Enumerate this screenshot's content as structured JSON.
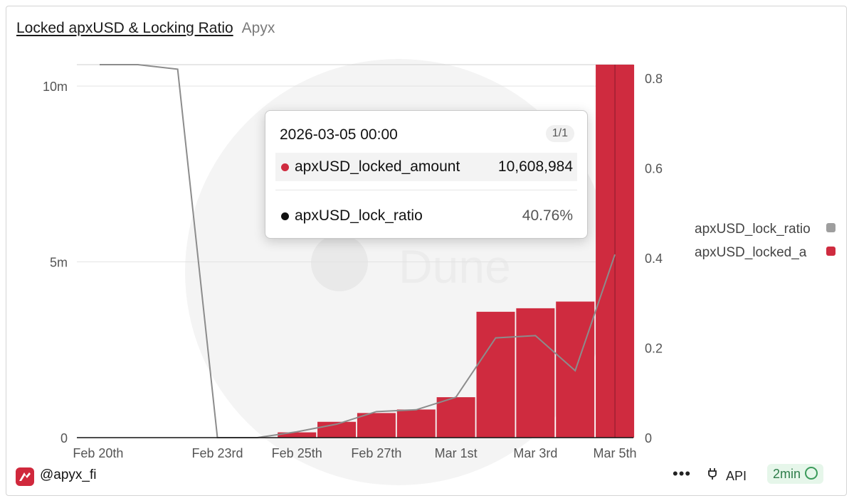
{
  "header": {
    "title": "Locked apxUSD & Locking Ratio",
    "owner": "Apyx"
  },
  "watermark": "Dune",
  "tooltip": {
    "date": "2026-03-05 00:00",
    "page": "1/1",
    "rows": [
      {
        "name": "apxUSD_locked_amount",
        "value": "10,608,984",
        "color": "#cf2b3f"
      },
      {
        "name": "apxUSD_lock_ratio",
        "value": "40.76%",
        "color": "#111111"
      }
    ]
  },
  "footer": {
    "handle": "@apyx_fi",
    "more": "•••",
    "api": "API",
    "age": "2min"
  },
  "chart_data": {
    "type": "bar",
    "categories": [
      "Feb 20th",
      "Feb 21st",
      "Feb 22nd",
      "Feb 23rd",
      "Feb 24th",
      "Feb 25th",
      "Feb 26th",
      "Feb 27th",
      "Feb 28th",
      "Mar 1st",
      "Mar 2nd",
      "Mar 3rd",
      "Mar 4th",
      "Mar 5th"
    ],
    "x_tick_labels": [
      "Feb 20th",
      "Feb 23rd",
      "Feb 25th",
      "Feb 27th",
      "Mar 1st",
      "Mar 3rd",
      "Mar 5th"
    ],
    "series": [
      {
        "name": "apxUSD_locked_amount",
        "axis": "left",
        "kind": "bar",
        "color": "#cf2b3f",
        "values": [
          0,
          0,
          0,
          0,
          0,
          150000,
          450000,
          700000,
          800000,
          1150000,
          3580000,
          3680000,
          3870000,
          10608984
        ]
      },
      {
        "name": "apxUSD_lock_ratio",
        "axis": "right",
        "kind": "line",
        "color": "#8c8c8c",
        "values": [
          0.84,
          0.835,
          0.82,
          0.0,
          0.0,
          0.013,
          0.03,
          0.058,
          0.062,
          0.09,
          0.222,
          0.227,
          0.149,
          0.4076
        ]
      }
    ],
    "y_left": {
      "ticks": [
        "0",
        "5m",
        "10m"
      ],
      "tick_values": [
        0,
        5000000,
        10000000
      ],
      "range": [
        0,
        10608984
      ]
    },
    "y_right": {
      "ticks": [
        "0",
        "0.2",
        "0.4",
        "0.6",
        "0.8"
      ],
      "tick_values": [
        0,
        0.2,
        0.4,
        0.6,
        0.8
      ],
      "range": [
        0,
        0.8
      ]
    },
    "legend": {
      "position": "right",
      "items": [
        {
          "label": "apxUSD_lock_ratio",
          "color": "#9e9e9e"
        },
        {
          "label": "apxUSD_locked_a",
          "color": "#cf2b3f"
        }
      ]
    },
    "grid": true
  }
}
